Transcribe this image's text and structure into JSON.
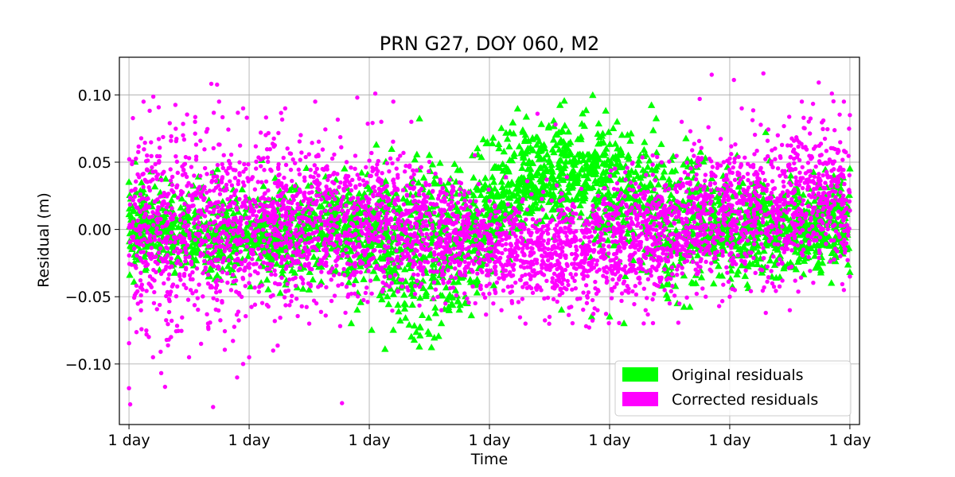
{
  "chart_data": {
    "type": "scatter",
    "title": "PRN G27, DOY 060, M2",
    "xlabel": "Time",
    "ylabel": "Residual (m)",
    "x_tick_labels": [
      "1 day",
      "1 day",
      "1 day",
      "1 day",
      "1 day",
      "1 day",
      "1 day"
    ],
    "y_ticks": [
      -0.1,
      -0.05,
      0.0,
      0.05,
      0.1
    ],
    "y_tick_labels": [
      "−0.10",
      "−0.05",
      "0.00",
      "0.05",
      "0.10"
    ],
    "xlim": [
      -0.08,
      6.08
    ],
    "ylim": [
      -0.145,
      0.128
    ],
    "grid": true,
    "legend_position": "lower-right",
    "series": [
      {
        "name": "Original residuals",
        "marker": "triangle",
        "color": "#00ff00",
        "trend": [
          [
            0.0,
            0.0
          ],
          [
            0.5,
            -0.005
          ],
          [
            1.0,
            -0.005
          ],
          [
            1.5,
            0.0
          ],
          [
            2.0,
            0.0
          ],
          [
            2.3,
            -0.02
          ],
          [
            2.6,
            -0.015
          ],
          [
            2.9,
            0.0
          ],
          [
            3.2,
            0.03
          ],
          [
            3.5,
            0.04
          ],
          [
            3.8,
            0.04
          ],
          [
            4.1,
            0.03
          ],
          [
            4.5,
            0.01
          ],
          [
            5.0,
            0.0
          ],
          [
            5.5,
            0.0
          ],
          [
            6.0,
            0.005
          ]
        ],
        "spread": [
          [
            0.0,
            0.02
          ],
          [
            1.0,
            0.02
          ],
          [
            2.0,
            0.025
          ],
          [
            2.3,
            0.04
          ],
          [
            2.7,
            0.04
          ],
          [
            3.0,
            0.03
          ],
          [
            3.5,
            0.025
          ],
          [
            4.0,
            0.03
          ],
          [
            4.5,
            0.035
          ],
          [
            5.0,
            0.025
          ],
          [
            6.0,
            0.02
          ]
        ],
        "points": [
          [
            0.0,
            0.035
          ],
          [
            0.05,
            0.05
          ],
          [
            0.7,
            0.042
          ],
          [
            2.02,
            -0.075
          ],
          [
            1.9,
            -0.06
          ],
          [
            1.85,
            -0.07
          ],
          [
            2.2,
            -0.075
          ],
          [
            2.35,
            -0.08
          ],
          [
            2.5,
            -0.078
          ],
          [
            2.6,
            -0.07
          ],
          [
            2.75,
            -0.06
          ],
          [
            2.8,
            -0.05
          ],
          [
            3.08,
            0.06
          ],
          [
            3.15,
            0.067
          ],
          [
            3.3,
            0.07
          ],
          [
            3.4,
            0.068
          ],
          [
            3.6,
            0.045
          ],
          [
            4.1,
            0.055
          ],
          [
            3.85,
            -0.065
          ],
          [
            4.0,
            -0.065
          ],
          [
            4.12,
            -0.07
          ],
          [
            3.6,
            -0.06
          ],
          [
            5.3,
            0.072
          ],
          [
            6.0,
            0.045
          ],
          [
            6.0,
            -0.032
          ],
          [
            1.1,
            -0.04
          ],
          [
            1.5,
            -0.045
          ],
          [
            2.15,
            -0.05
          ],
          [
            2.5,
            0.055
          ],
          [
            2.9,
            0.06
          ]
        ]
      },
      {
        "name": "Corrected residuals",
        "marker": "circle",
        "color": "#ff00ff",
        "trend": [
          [
            0.0,
            0.0
          ],
          [
            1.0,
            0.005
          ],
          [
            2.0,
            0.005
          ],
          [
            2.5,
            0.0
          ],
          [
            3.0,
            -0.01
          ],
          [
            3.5,
            -0.02
          ],
          [
            4.0,
            -0.01
          ],
          [
            4.5,
            0.0
          ],
          [
            5.0,
            0.01
          ],
          [
            5.5,
            0.02
          ],
          [
            6.0,
            0.025
          ]
        ],
        "spread": [
          [
            0.0,
            0.045
          ],
          [
            0.5,
            0.05
          ],
          [
            1.0,
            0.045
          ],
          [
            1.5,
            0.04
          ],
          [
            2.0,
            0.035
          ],
          [
            2.5,
            0.03
          ],
          [
            3.0,
            0.025
          ],
          [
            3.5,
            0.025
          ],
          [
            4.0,
            0.03
          ],
          [
            4.5,
            0.03
          ],
          [
            5.0,
            0.035
          ],
          [
            5.5,
            0.035
          ],
          [
            6.0,
            0.035
          ]
        ],
        "points": [
          [
            0.0,
            -0.118
          ],
          [
            0.01,
            -0.13
          ],
          [
            0.3,
            -0.117
          ],
          [
            0.7,
            -0.132
          ],
          [
            0.9,
            -0.11
          ],
          [
            0.95,
            -0.1
          ],
          [
            0.5,
            -0.095
          ],
          [
            0.2,
            -0.095
          ],
          [
            0.75,
            0.095
          ],
          [
            0.95,
            0.09
          ],
          [
            1.3,
            0.09
          ],
          [
            1.55,
            0.095
          ],
          [
            1.9,
            0.098
          ],
          [
            2.05,
            0.101
          ],
          [
            2.2,
            0.095
          ],
          [
            2.35,
            0.08
          ],
          [
            2.1,
            0.08
          ],
          [
            3.4,
            0.086
          ],
          [
            3.55,
            0.078
          ],
          [
            4.6,
            0.08
          ],
          [
            4.75,
            0.097
          ],
          [
            4.85,
            0.115
          ],
          [
            5.28,
            0.116
          ],
          [
            5.1,
            0.09
          ],
          [
            5.6,
            0.095
          ],
          [
            5.85,
            0.101
          ],
          [
            5.95,
            0.095
          ],
          [
            6.0,
            0.085
          ],
          [
            6.0,
            -0.035
          ],
          [
            5.95,
            -0.045
          ],
          [
            5.5,
            -0.06
          ],
          [
            5.3,
            -0.062
          ],
          [
            5.0,
            -0.05
          ],
          [
            4.8,
            -0.05
          ],
          [
            4.5,
            -0.055
          ],
          [
            4.3,
            -0.06
          ],
          [
            3.9,
            -0.06
          ],
          [
            3.5,
            -0.065
          ],
          [
            3.3,
            -0.07
          ],
          [
            3.1,
            -0.06
          ],
          [
            2.6,
            -0.06
          ],
          [
            1.5,
            -0.07
          ],
          [
            1.2,
            -0.09
          ],
          [
            1.0,
            -0.095
          ],
          [
            0.6,
            -0.085
          ],
          [
            0.35,
            -0.08
          ],
          [
            0.1,
            -0.06
          ],
          [
            0.15,
            0.055
          ],
          [
            0.45,
            0.07
          ],
          [
            0.55,
            0.08
          ],
          [
            4.95,
            0.05
          ],
          [
            5.4,
            0.07
          ],
          [
            5.7,
            0.06
          ]
        ]
      }
    ]
  }
}
